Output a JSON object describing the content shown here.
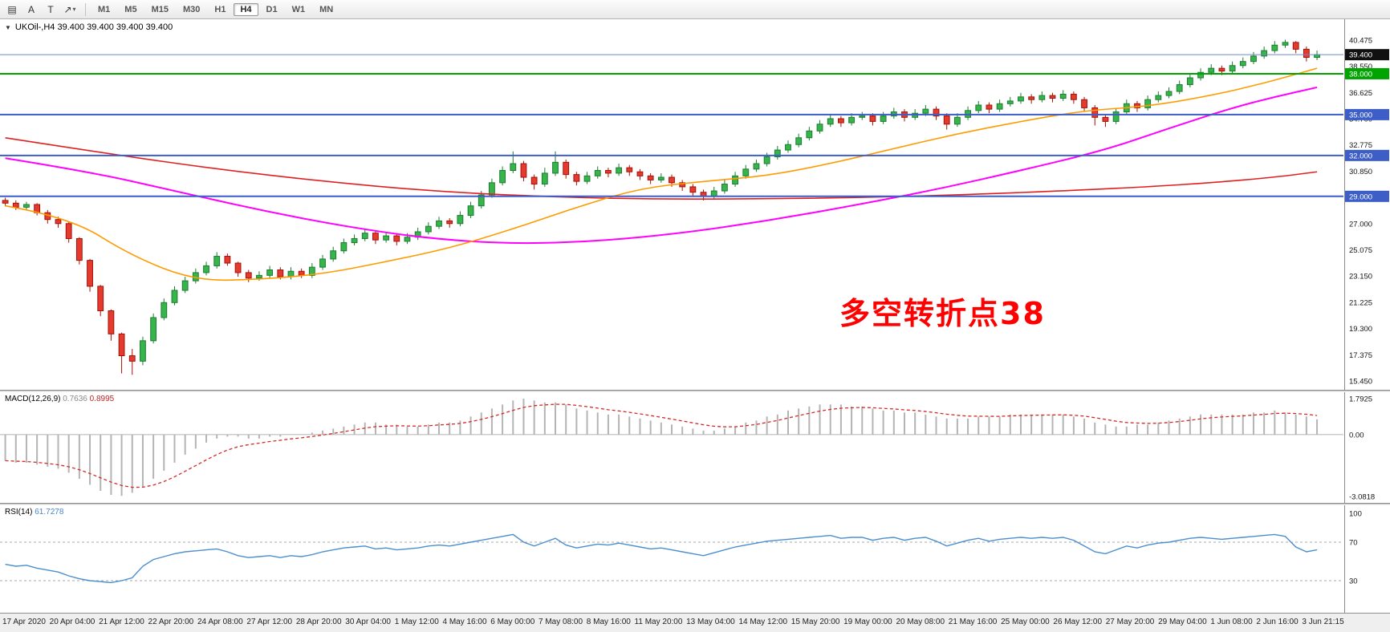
{
  "toolbar": {
    "tools": [
      {
        "name": "charts-grid-icon",
        "glyph": "▤"
      },
      {
        "name": "cursor-tool-a",
        "glyph": "A"
      },
      {
        "name": "text-tool",
        "glyph": "T"
      },
      {
        "name": "drawing-tools-dropdown",
        "glyph": "↗",
        "caret": "▾"
      }
    ],
    "timeframes": [
      "M1",
      "M5",
      "M15",
      "M30",
      "H1",
      "H4",
      "D1",
      "W1",
      "MN"
    ],
    "active_timeframe": "H4"
  },
  "chart": {
    "collapse_glyph": "▼",
    "header_text": "UKOil-,H4 39.400 39.400 39.400 39.400",
    "annotation": {
      "text": "多空转折点38",
      "color": "#ff0000"
    },
    "colors": {
      "background": "#ffffff",
      "candle_up": {
        "fill": "#35b54a",
        "border": "#1d7c31"
      },
      "candle_down": {
        "fill": "#e53a2e",
        "border": "#a21208"
      },
      "axis_text": "#151515"
    }
  },
  "chart_data": {
    "type": "candlestick",
    "symbol": "UKOil-",
    "timeframe": "H4",
    "current_price": "39.400",
    "price_axis_labels": [
      "40.475",
      "38.550",
      "36.625",
      "34.700",
      "32.775",
      "30.850",
      "27.000",
      "25.075",
      "23.150",
      "21.225",
      "19.300",
      "17.375",
      "15.450"
    ],
    "hlines": [
      {
        "price": 39.4,
        "label": "39.400",
        "line_color": "#6a8bc8",
        "line_width": 1,
        "badge_bg": "#111111"
      },
      {
        "price": 38.0,
        "label": "38.000",
        "line_color": "#00a400",
        "line_width": 2,
        "badge_bg": "#00a400"
      },
      {
        "price": 35.0,
        "label": "35.000",
        "line_color": "#3d5ec7",
        "line_width": 2,
        "badge_bg": "#3d5ec7"
      },
      {
        "price": 32.0,
        "label": "32.000",
        "line_color": "#3d5ec7",
        "line_width": 2,
        "badge_bg": "#3d5ec7"
      },
      {
        "price": 29.0,
        "label": "29.000",
        "line_color": "#3d5ec7",
        "line_width": 2,
        "badge_bg": "#3d5ec7"
      }
    ],
    "ohlc": [
      [
        28.7,
        28.9,
        28.3,
        28.5
      ],
      [
        28.5,
        28.7,
        28.0,
        28.2
      ],
      [
        28.2,
        28.6,
        28.0,
        28.4
      ],
      [
        28.4,
        28.5,
        27.6,
        27.8
      ],
      [
        27.8,
        28.0,
        27.0,
        27.3
      ],
      [
        27.3,
        27.5,
        26.7,
        27.0
      ],
      [
        27.0,
        27.1,
        25.6,
        25.9
      ],
      [
        25.9,
        26.0,
        24.0,
        24.3
      ],
      [
        24.3,
        24.4,
        22.0,
        22.4
      ],
      [
        22.4,
        22.5,
        20.2,
        20.6
      ],
      [
        20.6,
        20.7,
        18.4,
        18.9
      ],
      [
        18.9,
        19.0,
        16.0,
        17.3
      ],
      [
        17.3,
        17.8,
        15.9,
        16.9
      ],
      [
        16.9,
        18.7,
        16.6,
        18.4
      ],
      [
        18.4,
        20.4,
        18.2,
        20.1
      ],
      [
        20.1,
        21.5,
        19.9,
        21.2
      ],
      [
        21.2,
        22.4,
        21.0,
        22.1
      ],
      [
        22.1,
        23.1,
        21.9,
        22.8
      ],
      [
        22.8,
        23.7,
        22.6,
        23.4
      ],
      [
        23.4,
        24.2,
        23.2,
        23.9
      ],
      [
        23.9,
        24.9,
        23.7,
        24.6
      ],
      [
        24.6,
        24.8,
        23.9,
        24.1
      ],
      [
        24.1,
        24.2,
        23.1,
        23.4
      ],
      [
        23.4,
        23.6,
        22.7,
        23.0
      ],
      [
        23.0,
        23.5,
        22.8,
        23.2
      ],
      [
        23.2,
        23.9,
        23.0,
        23.6
      ],
      [
        23.6,
        23.8,
        22.9,
        23.1
      ],
      [
        23.1,
        23.8,
        22.9,
        23.5
      ],
      [
        23.5,
        23.7,
        23.0,
        23.2
      ],
      [
        23.2,
        24.1,
        23.0,
        23.8
      ],
      [
        23.8,
        24.7,
        23.6,
        24.4
      ],
      [
        24.4,
        25.3,
        24.2,
        25.0
      ],
      [
        25.0,
        25.9,
        24.8,
        25.6
      ],
      [
        25.6,
        26.2,
        25.4,
        25.9
      ],
      [
        25.9,
        26.6,
        25.7,
        26.3
      ],
      [
        26.3,
        26.5,
        25.5,
        25.8
      ],
      [
        25.8,
        26.4,
        25.6,
        26.1
      ],
      [
        26.1,
        26.3,
        25.4,
        25.7
      ],
      [
        25.7,
        26.3,
        25.5,
        26.0
      ],
      [
        26.0,
        26.7,
        25.8,
        26.4
      ],
      [
        26.4,
        27.1,
        26.2,
        26.8
      ],
      [
        26.8,
        27.5,
        26.6,
        27.2
      ],
      [
        27.2,
        27.4,
        26.7,
        27.0
      ],
      [
        27.0,
        27.9,
        26.8,
        27.6
      ],
      [
        27.6,
        28.6,
        27.4,
        28.3
      ],
      [
        28.3,
        29.4,
        28.1,
        29.1
      ],
      [
        29.1,
        30.3,
        28.9,
        30.0
      ],
      [
        30.0,
        31.2,
        29.8,
        30.9
      ],
      [
        30.9,
        32.3,
        30.7,
        31.4
      ],
      [
        31.4,
        31.6,
        30.1,
        30.4
      ],
      [
        30.4,
        30.6,
        29.5,
        29.9
      ],
      [
        29.9,
        31.1,
        29.7,
        30.7
      ],
      [
        30.7,
        32.3,
        30.5,
        31.5
      ],
      [
        31.5,
        31.7,
        30.3,
        30.6
      ],
      [
        30.6,
        30.8,
        29.8,
        30.1
      ],
      [
        30.1,
        30.8,
        29.9,
        30.5
      ],
      [
        30.5,
        31.2,
        30.3,
        30.9
      ],
      [
        30.9,
        31.1,
        30.4,
        30.7
      ],
      [
        30.7,
        31.4,
        30.5,
        31.1
      ],
      [
        31.1,
        31.3,
        30.5,
        30.8
      ],
      [
        30.8,
        31.0,
        30.2,
        30.5
      ],
      [
        30.5,
        30.7,
        29.9,
        30.2
      ],
      [
        30.2,
        30.7,
        30.0,
        30.4
      ],
      [
        30.4,
        30.6,
        29.7,
        30.0
      ],
      [
        30.0,
        30.2,
        29.4,
        29.7
      ],
      [
        29.7,
        29.9,
        29.0,
        29.3
      ],
      [
        29.3,
        29.5,
        28.7,
        29.0
      ],
      [
        29.0,
        29.7,
        28.8,
        29.4
      ],
      [
        29.4,
        30.2,
        29.2,
        29.9
      ],
      [
        29.9,
        30.8,
        29.7,
        30.5
      ],
      [
        30.5,
        31.3,
        30.3,
        31.0
      ],
      [
        31.0,
        31.7,
        30.8,
        31.4
      ],
      [
        31.4,
        32.2,
        31.2,
        31.9
      ],
      [
        31.9,
        32.7,
        31.7,
        32.4
      ],
      [
        32.4,
        33.1,
        32.2,
        32.8
      ],
      [
        32.8,
        33.6,
        32.6,
        33.3
      ],
      [
        33.3,
        34.1,
        33.1,
        33.8
      ],
      [
        33.8,
        34.6,
        33.6,
        34.3
      ],
      [
        34.3,
        35.0,
        34.1,
        34.7
      ],
      [
        34.7,
        34.9,
        34.1,
        34.4
      ],
      [
        34.4,
        35.1,
        34.2,
        34.8
      ],
      [
        34.8,
        35.2,
        34.6,
        34.9
      ],
      [
        34.9,
        35.1,
        34.2,
        34.5
      ],
      [
        34.5,
        35.2,
        34.3,
        34.9
      ],
      [
        34.9,
        35.5,
        34.7,
        35.2
      ],
      [
        35.2,
        35.4,
        34.5,
        34.8
      ],
      [
        34.8,
        35.4,
        34.6,
        35.1
      ],
      [
        35.1,
        35.7,
        34.9,
        35.4
      ],
      [
        35.4,
        35.6,
        34.6,
        34.9
      ],
      [
        34.9,
        35.1,
        33.9,
        34.3
      ],
      [
        34.3,
        35.1,
        34.1,
        34.8
      ],
      [
        34.8,
        35.6,
        34.6,
        35.3
      ],
      [
        35.3,
        36.0,
        35.1,
        35.7
      ],
      [
        35.7,
        35.9,
        35.1,
        35.4
      ],
      [
        35.4,
        36.1,
        35.2,
        35.8
      ],
      [
        35.8,
        36.3,
        35.6,
        36.0
      ],
      [
        36.0,
        36.6,
        35.8,
        36.3
      ],
      [
        36.3,
        36.5,
        35.8,
        36.1
      ],
      [
        36.1,
        36.7,
        35.9,
        36.4
      ],
      [
        36.4,
        36.6,
        35.9,
        36.2
      ],
      [
        36.2,
        36.8,
        36.0,
        36.5
      ],
      [
        36.5,
        36.7,
        35.8,
        36.1
      ],
      [
        36.1,
        36.3,
        35.2,
        35.5
      ],
      [
        35.5,
        35.7,
        34.2,
        34.8
      ],
      [
        34.8,
        35.0,
        34.1,
        34.5
      ],
      [
        34.5,
        35.5,
        34.3,
        35.2
      ],
      [
        35.2,
        36.1,
        35.0,
        35.8
      ],
      [
        35.8,
        36.0,
        35.2,
        35.5
      ],
      [
        35.5,
        36.4,
        35.3,
        36.1
      ],
      [
        36.1,
        36.7,
        35.9,
        36.4
      ],
      [
        36.4,
        37.0,
        36.2,
        36.7
      ],
      [
        36.7,
        37.5,
        36.5,
        37.2
      ],
      [
        37.2,
        38.0,
        37.0,
        37.7
      ],
      [
        37.7,
        38.4,
        37.5,
        38.1
      ],
      [
        38.1,
        38.7,
        37.9,
        38.4
      ],
      [
        38.4,
        38.6,
        37.9,
        38.2
      ],
      [
        38.2,
        38.9,
        38.0,
        38.6
      ],
      [
        38.6,
        39.2,
        38.4,
        38.9
      ],
      [
        38.9,
        39.6,
        38.7,
        39.3
      ],
      [
        39.3,
        40.0,
        39.1,
        39.7
      ],
      [
        39.7,
        40.4,
        39.5,
        40.1
      ],
      [
        40.1,
        40.5,
        39.9,
        40.3
      ],
      [
        40.3,
        40.4,
        39.5,
        39.8
      ],
      [
        39.8,
        40.0,
        38.9,
        39.2
      ],
      [
        39.2,
        39.7,
        39.0,
        39.4
      ]
    ],
    "ma_lines": [
      {
        "name": "ma-slow-red",
        "color": "#e02020",
        "width": 1.6,
        "points": [
          [
            0,
            33.3
          ],
          [
            10,
            32.1
          ],
          [
            20,
            31.0
          ],
          [
            30,
            30.1
          ],
          [
            40,
            29.4
          ],
          [
            50,
            29.0
          ],
          [
            60,
            28.8
          ],
          [
            70,
            28.8
          ],
          [
            80,
            28.9
          ],
          [
            90,
            29.1
          ],
          [
            100,
            29.4
          ],
          [
            108,
            29.7
          ],
          [
            114,
            30.0
          ],
          [
            120,
            30.4
          ],
          [
            124,
            30.8
          ]
        ]
      },
      {
        "name": "ma-mid-magenta",
        "color": "#ff00ff",
        "width": 2,
        "points": [
          [
            0,
            31.8
          ],
          [
            8,
            30.8
          ],
          [
            16,
            29.4
          ],
          [
            24,
            28.0
          ],
          [
            32,
            26.8
          ],
          [
            40,
            25.9
          ],
          [
            48,
            25.5
          ],
          [
            56,
            25.7
          ],
          [
            64,
            26.3
          ],
          [
            72,
            27.2
          ],
          [
            80,
            28.3
          ],
          [
            88,
            29.5
          ],
          [
            96,
            30.9
          ],
          [
            104,
            32.4
          ],
          [
            110,
            34.0
          ],
          [
            116,
            35.5
          ],
          [
            120,
            36.3
          ],
          [
            124,
            37.0
          ]
        ]
      },
      {
        "name": "ma-fast-orange",
        "color": "#ff9a00",
        "width": 1.6,
        "points": [
          [
            0,
            28.3
          ],
          [
            6,
            27.5
          ],
          [
            12,
            24.6
          ],
          [
            18,
            22.8
          ],
          [
            24,
            22.9
          ],
          [
            30,
            23.3
          ],
          [
            36,
            24.2
          ],
          [
            42,
            25.2
          ],
          [
            48,
            26.6
          ],
          [
            54,
            28.2
          ],
          [
            60,
            29.6
          ],
          [
            66,
            30.1
          ],
          [
            72,
            30.5
          ],
          [
            78,
            31.4
          ],
          [
            84,
            32.5
          ],
          [
            90,
            33.6
          ],
          [
            96,
            34.5
          ],
          [
            102,
            35.3
          ],
          [
            108,
            35.6
          ],
          [
            114,
            36.4
          ],
          [
            119,
            37.3
          ],
          [
            124,
            38.4
          ]
        ]
      }
    ],
    "macd": {
      "name": "MACD(12,26,9)",
      "value_main": "0.7636",
      "value_signal": "0.8995",
      "axis": [
        {
          "v": 1.7925,
          "t": "1.7925"
        },
        {
          "v": 0,
          "t": "0.00"
        },
        {
          "v": -3.0818,
          "t": "-3.0818"
        }
      ],
      "max": 1.7925,
      "min": -3.0818,
      "main": [
        -1.3,
        -1.4,
        -1.4,
        -1.5,
        -1.6,
        -1.7,
        -1.9,
        -2.2,
        -2.5,
        -2.8,
        -3.0,
        -3.05,
        -2.9,
        -2.6,
        -2.2,
        -1.8,
        -1.4,
        -1.0,
        -0.7,
        -0.4,
        -0.2,
        -0.1,
        -0.1,
        -0.2,
        -0.2,
        -0.1,
        -0.1,
        0.0,
        0.0,
        0.1,
        0.2,
        0.3,
        0.4,
        0.5,
        0.6,
        0.6,
        0.5,
        0.5,
        0.4,
        0.4,
        0.5,
        0.6,
        0.6,
        0.7,
        0.9,
        1.1,
        1.3,
        1.5,
        1.7,
        1.79,
        1.7,
        1.6,
        1.6,
        1.5,
        1.3,
        1.2,
        1.1,
        1.0,
        1.0,
        0.9,
        0.8,
        0.7,
        0.6,
        0.5,
        0.4,
        0.3,
        0.2,
        0.2,
        0.3,
        0.4,
        0.6,
        0.7,
        0.9,
        1.0,
        1.2,
        1.3,
        1.4,
        1.5,
        1.5,
        1.5,
        1.4,
        1.4,
        1.3,
        1.2,
        1.2,
        1.1,
        1.1,
        1.0,
        0.9,
        0.8,
        0.8,
        0.8,
        0.9,
        0.9,
        0.9,
        1.0,
        1.0,
        1.0,
        1.0,
        1.0,
        1.0,
        0.9,
        0.8,
        0.6,
        0.5,
        0.4,
        0.4,
        0.5,
        0.5,
        0.6,
        0.7,
        0.8,
        0.9,
        1.0,
        1.0,
        1.0,
        1.0,
        1.0,
        1.1,
        1.1,
        1.2,
        1.1,
        1.0,
        0.9,
        0.76
      ]
    },
    "rsi": {
      "name": "RSI(14)",
      "value": "61.7278",
      "levels": [
        70,
        30
      ],
      "axis": [
        {
          "v": 100,
          "t": "100"
        },
        {
          "v": 70,
          "t": "70"
        },
        {
          "v": 30,
          "t": "30"
        }
      ],
      "series": [
        47,
        45,
        46,
        43,
        41,
        39,
        35,
        32,
        30,
        29,
        28,
        30,
        33,
        45,
        52,
        55,
        58,
        60,
        61,
        62,
        63,
        60,
        56,
        54,
        55,
        56,
        54,
        56,
        55,
        57,
        60,
        62,
        64,
        65,
        66,
        63,
        64,
        62,
        63,
        64,
        66,
        67,
        66,
        68,
        70,
        72,
        74,
        76,
        78,
        70,
        66,
        70,
        74,
        67,
        64,
        66,
        68,
        67,
        69,
        67,
        65,
        63,
        64,
        62,
        60,
        58,
        56,
        59,
        62,
        65,
        67,
        69,
        71,
        72,
        73,
        74,
        75,
        76,
        77,
        74,
        75,
        75,
        72,
        74,
        75,
        72,
        74,
        75,
        71,
        66,
        69,
        72,
        74,
        71,
        73,
        74,
        75,
        74,
        75,
        74,
        75,
        72,
        66,
        60,
        58,
        62,
        66,
        64,
        67,
        69,
        70,
        72,
        74,
        75,
        74,
        73,
        74,
        75,
        76,
        77,
        78,
        76,
        65,
        60,
        62
      ]
    },
    "time_labels": [
      "17 Apr 2020",
      "20 Apr 04:00",
      "21 Apr 12:00",
      "22 Apr 20:00",
      "24 Apr 08:00",
      "27 Apr 12:00",
      "28 Apr 20:00",
      "30 Apr 04:00",
      "1 May 12:00",
      "4 May 16:00",
      "6 May 00:00",
      "7 May 08:00",
      "8 May 16:00",
      "11 May 20:00",
      "13 May 04:00",
      "14 May 12:00",
      "15 May 20:00",
      "19 May 00:00",
      "20 May 08:00",
      "21 May 16:00",
      "25 May 00:00",
      "26 May 12:00",
      "27 May 20:00",
      "29 May 04:00",
      "1 Jun 08:00",
      "2 Jun 16:00",
      "3 Jun 21:15"
    ]
  }
}
